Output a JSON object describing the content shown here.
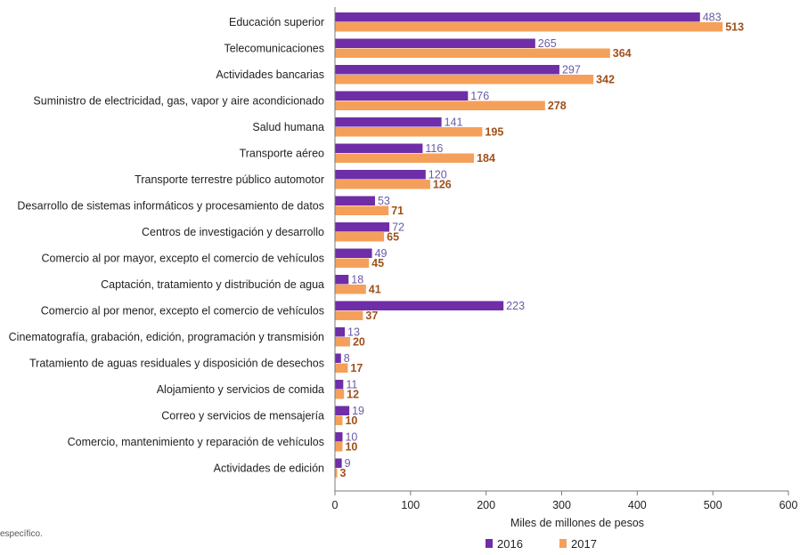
{
  "chart_data": {
    "type": "bar",
    "orientation": "horizontal",
    "categories": [
      "Educación superior",
      "Telecomunicaciones",
      "Actividades bancarias",
      "Suministro de electricidad, gas, vapor y aire acondicionado",
      "Salud humana",
      "Transporte aéreo",
      "Transporte terrestre público automotor",
      "Desarrollo de sistemas informáticos y procesamiento de datos",
      "Centros de investigación y desarrollo",
      "Comercio al por mayor, excepto el comercio de vehículos",
      "Captación, tratamiento y distribución de agua",
      "Comercio al por menor, excepto el comercio de vehículos",
      "Cinematografía, grabación, edición, programación y transmisión",
      "Tratamiento de aguas residuales y disposición de desechos",
      "Alojamiento y servicios de comida",
      "Correo y servicios de mensajería",
      "Comercio, mantenimiento y reparación de vehículos",
      "Actividades de edición"
    ],
    "series": [
      {
        "name": "2016",
        "color": "#6f2da8",
        "values": [
          483,
          265,
          297,
          176,
          141,
          116,
          120,
          53,
          72,
          49,
          18,
          223,
          13,
          8,
          11,
          19,
          10,
          9
        ]
      },
      {
        "name": "2017",
        "color": "#f5a05a",
        "values": [
          513,
          364,
          342,
          278,
          195,
          184,
          126,
          71,
          65,
          45,
          41,
          37,
          20,
          17,
          12,
          10,
          10,
          3
        ]
      }
    ],
    "xlabel": "Miles de millones de pesos",
    "xlim": [
      0,
      600
    ],
    "xticks": [
      0,
      100,
      200,
      300,
      400,
      500,
      600
    ],
    "grid": false,
    "legend": "bottom"
  },
  "footnote": "específico."
}
